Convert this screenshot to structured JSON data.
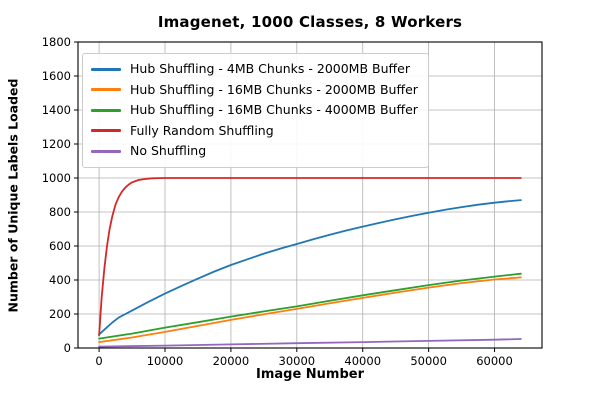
{
  "chart_data": {
    "type": "line",
    "title": "Imagenet, 1000 Classes, 8 Workers",
    "xlabel": "Image Number",
    "ylabel": "Number of Unique Labels Loaded",
    "xlim": [
      -3200,
      67200
    ],
    "ylim": [
      0,
      1800
    ],
    "xticks": [
      0,
      10000,
      20000,
      30000,
      40000,
      50000,
      60000
    ],
    "yticks": [
      0,
      200,
      400,
      600,
      800,
      1000,
      1200,
      1400,
      1600,
      1800
    ],
    "grid": true,
    "grid_color": "#b0b0b0",
    "spine_color": "#000000",
    "legend_position": "upper left",
    "series": [
      {
        "name": "Hub Shuffling - 4MB Chunks - 2000MB Buffer",
        "color": "#1f77b4",
        "points": [
          [
            0,
            80
          ],
          [
            1000,
            115
          ],
          [
            2000,
            150
          ],
          [
            3000,
            180
          ],
          [
            4000,
            200
          ],
          [
            5000,
            220
          ],
          [
            7500,
            272
          ],
          [
            10000,
            320
          ],
          [
            12500,
            365
          ],
          [
            15000,
            408
          ],
          [
            17500,
            450
          ],
          [
            20000,
            488
          ],
          [
            22500,
            522
          ],
          [
            25000,
            555
          ],
          [
            27500,
            585
          ],
          [
            30000,
            612
          ],
          [
            32500,
            640
          ],
          [
            35000,
            666
          ],
          [
            37500,
            691
          ],
          [
            40000,
            714
          ],
          [
            42500,
            736
          ],
          [
            45000,
            757
          ],
          [
            47500,
            777
          ],
          [
            50000,
            796
          ],
          [
            52500,
            813
          ],
          [
            55000,
            829
          ],
          [
            57500,
            843
          ],
          [
            60000,
            855
          ],
          [
            62000,
            863
          ],
          [
            64000,
            870
          ]
        ]
      },
      {
        "name": "Hub Shuffling - 16MB Chunks - 2000MB Buffer",
        "color": "#ff7f0e",
        "points": [
          [
            0,
            35
          ],
          [
            5000,
            62
          ],
          [
            10000,
            95
          ],
          [
            15000,
            130
          ],
          [
            20000,
            165
          ],
          [
            25000,
            198
          ],
          [
            30000,
            230
          ],
          [
            35000,
            263
          ],
          [
            40000,
            295
          ],
          [
            45000,
            326
          ],
          [
            50000,
            355
          ],
          [
            55000,
            382
          ],
          [
            60000,
            403
          ],
          [
            64000,
            415
          ]
        ]
      },
      {
        "name": "Hub Shuffling - 16MB Chunks - 4000MB Buffer",
        "color": "#2ca02c",
        "points": [
          [
            0,
            55
          ],
          [
            5000,
            85
          ],
          [
            10000,
            120
          ],
          [
            15000,
            152
          ],
          [
            20000,
            185
          ],
          [
            25000,
            215
          ],
          [
            30000,
            245
          ],
          [
            35000,
            278
          ],
          [
            40000,
            310
          ],
          [
            45000,
            340
          ],
          [
            50000,
            370
          ],
          [
            55000,
            397
          ],
          [
            60000,
            420
          ],
          [
            64000,
            437
          ]
        ]
      },
      {
        "name": "Fully Random Shuffling",
        "color": "#d62728",
        "points": [
          [
            0,
            75
          ],
          [
            400,
            300
          ],
          [
            800,
            470
          ],
          [
            1200,
            600
          ],
          [
            1600,
            700
          ],
          [
            2000,
            775
          ],
          [
            2500,
            845
          ],
          [
            3000,
            890
          ],
          [
            3500,
            922
          ],
          [
            4000,
            945
          ],
          [
            4500,
            962
          ],
          [
            5000,
            974
          ],
          [
            6000,
            988
          ],
          [
            7000,
            994
          ],
          [
            8000,
            998
          ],
          [
            10000,
            1000
          ],
          [
            20000,
            1000
          ],
          [
            30000,
            1000
          ],
          [
            40000,
            1000
          ],
          [
            50000,
            1000
          ],
          [
            60000,
            1000
          ],
          [
            64000,
            1000
          ]
        ]
      },
      {
        "name": "No Shuffling",
        "color": "#9467bd",
        "points": [
          [
            0,
            8
          ],
          [
            10000,
            14
          ],
          [
            20000,
            21
          ],
          [
            30000,
            28
          ],
          [
            40000,
            35
          ],
          [
            50000,
            42
          ],
          [
            60000,
            49
          ],
          [
            64000,
            53
          ]
        ]
      }
    ]
  }
}
